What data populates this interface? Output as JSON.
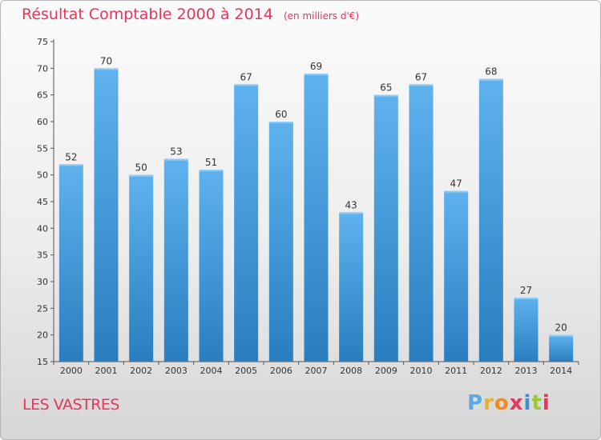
{
  "title": "Résultat Comptable 2000 à 2014",
  "subtitle": "(en milliers d'€)",
  "commune": "LES VASTRES",
  "logo": {
    "text": "Proxiti",
    "colors": [
      "#5aa9e0",
      "#e8b22c",
      "#f08a24",
      "#e8355a",
      "#3b8fd6",
      "#9bc53d",
      "#e8355a"
    ]
  },
  "colors": {
    "bar_light": "#5fb2ee",
    "bar_dark": "#2a7ec0",
    "accent": "#e8355a"
  },
  "chart_data": {
    "type": "bar",
    "categories": [
      "2000",
      "2001",
      "2002",
      "2003",
      "2004",
      "2005",
      "2006",
      "2007",
      "2008",
      "2009",
      "2010",
      "2011",
      "2012",
      "2013",
      "2014"
    ],
    "values": [
      52,
      70,
      50,
      53,
      51,
      67,
      60,
      69,
      43,
      65,
      67,
      47,
      68,
      27,
      20
    ],
    "yticks": [
      15,
      20,
      25,
      30,
      35,
      40,
      45,
      50,
      55,
      60,
      65,
      70,
      75
    ],
    "ylim": [
      15,
      75
    ],
    "grid": false,
    "data_labels": true
  }
}
